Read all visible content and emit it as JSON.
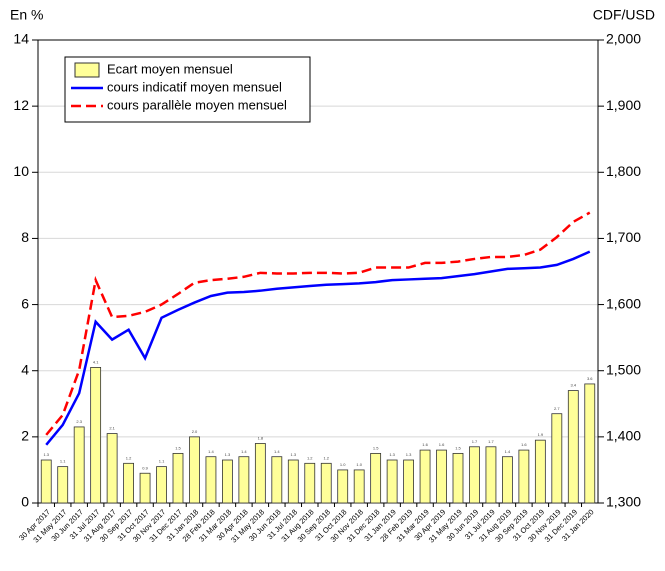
{
  "chart_data": {
    "type": "combo",
    "y_label": "En %",
    "y2_label": "CDF/USD",
    "categories": [
      "30 Apr 2017",
      "31 May 2017",
      "30 Jun 2017",
      "31 Jul 2017",
      "31 Aug 2017",
      "30 Sep 2017",
      "31 Oct 2017",
      "30 Nov 2017",
      "31 Dec 2017",
      "31 Jan 2018",
      "28 Feb 2018",
      "31 Mar 2018",
      "30 Apr 2018",
      "31 May 2018",
      "30 Jun 2018",
      "31 Jul 2018",
      "31 Aug 2018",
      "30 Sep 2018",
      "31 Oct 2018",
      "30 Nov 2018",
      "31 Dec 2018",
      "31 Jan 2019",
      "28 Feb 2019",
      "31 Mar 2019",
      "30 Apr 2019",
      "31 May 2019",
      "30 Jun 2019",
      "31 Jul 2019",
      "31 Aug 2019",
      "30 Sep 2019",
      "31 Oct 2019",
      "30 Nov 2019",
      "31 Dec 2019",
      "31 Jan 2020"
    ],
    "series": [
      {
        "name": "Ecart moyen mensuel",
        "type": "bar",
        "color": "#ffff99",
        "axis": "y",
        "values": [
          1.3,
          1.1,
          2.3,
          4.1,
          2.1,
          1.2,
          0.9,
          1.1,
          1.5,
          2,
          1.4,
          1.3,
          1.4,
          1.8,
          1.4,
          1.3,
          1.2,
          1.2,
          1,
          1,
          1.5,
          1.3,
          1.3,
          1.6,
          1.6,
          1.5,
          1.7,
          1.7,
          1.4,
          1.6,
          1.9,
          2.7,
          3.4,
          3.6
        ],
        "value_labels": [
          "1.3",
          "1.1",
          "2.3",
          "4.1",
          "2.1",
          "1.2",
          "0.9",
          "1.1",
          "1.5",
          "2.0",
          "1.4",
          "1.3",
          "1.4",
          "1.8",
          "1.4",
          "1.3",
          "1.2",
          "1.2",
          "1.0",
          "1.0",
          "1.5",
          "1.3",
          "1.3",
          "1.6",
          "1.6",
          "1.5",
          "1.7",
          "1.7",
          "1.4",
          "1.6",
          "1.9",
          "2.7",
          "3.4",
          "3.6"
        ]
      },
      {
        "name": "cours indicatif moyen mensuel",
        "type": "line",
        "color": "#0000ff",
        "dashed": false,
        "axis": "y2",
        "values": [
          1388,
          1418,
          1466,
          1574,
          1547,
          1562,
          1519,
          1580,
          1592,
          1603,
          1613,
          1618,
          1619,
          1621,
          1624,
          1626,
          1628,
          1630,
          1631,
          1632,
          1634,
          1637,
          1638,
          1639,
          1640,
          1643,
          1646,
          1650,
          1654,
          1655,
          1656,
          1660,
          1669,
          1680
        ]
      },
      {
        "name": "cours parallèle moyen mensuel",
        "type": "line",
        "color": "#ff0000",
        "dashed": true,
        "axis": "y2",
        "values": [
          1403,
          1433,
          1501,
          1637,
          1581,
          1583,
          1589,
          1600,
          1616,
          1633,
          1637,
          1639,
          1642,
          1648,
          1647,
          1647,
          1648,
          1648,
          1647,
          1648,
          1656,
          1656,
          1656,
          1663,
          1663,
          1665,
          1669,
          1672,
          1672,
          1675,
          1683,
          1702,
          1725,
          1739
        ]
      }
    ],
    "ylim": [
      0,
      14
    ],
    "yticks": [
      0,
      2,
      4,
      6,
      8,
      10,
      12,
      14
    ],
    "y2lim": [
      1300,
      2000
    ],
    "y2ticks": [
      {
        "value": 1300,
        "label": "1,300"
      },
      {
        "value": 1400,
        "label": "1,400"
      },
      {
        "value": 1500,
        "label": "1,500"
      },
      {
        "value": 1600,
        "label": "1,600"
      },
      {
        "value": 1700,
        "label": "1,700"
      },
      {
        "value": 1800,
        "label": "1,800"
      },
      {
        "value": 1900,
        "label": "1,900"
      },
      {
        "value": 2000,
        "label": "2,000"
      }
    ],
    "grid": true,
    "legend": "top-left"
  }
}
